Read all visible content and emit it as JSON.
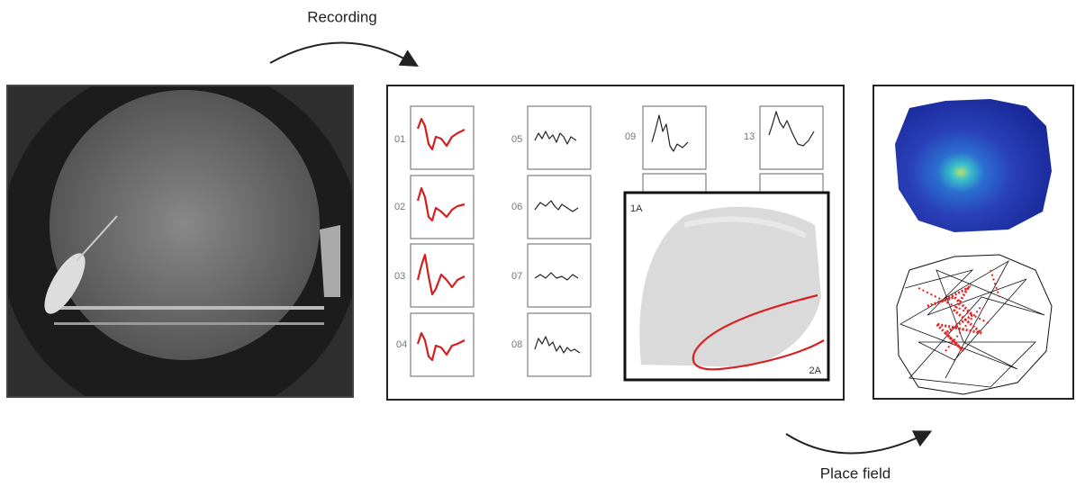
{
  "arrows": {
    "top": "Recording",
    "bottom": "Place field"
  },
  "waveforms": [
    {
      "label": "01"
    },
    {
      "label": "02"
    },
    {
      "label": "03"
    },
    {
      "label": "04"
    },
    {
      "label": "05"
    },
    {
      "label": "06"
    },
    {
      "label": "07"
    },
    {
      "label": "08"
    },
    {
      "label": "09"
    },
    {
      "label": "13"
    }
  ],
  "scatter": {
    "y_label": "1A",
    "x_label": "2A"
  }
}
